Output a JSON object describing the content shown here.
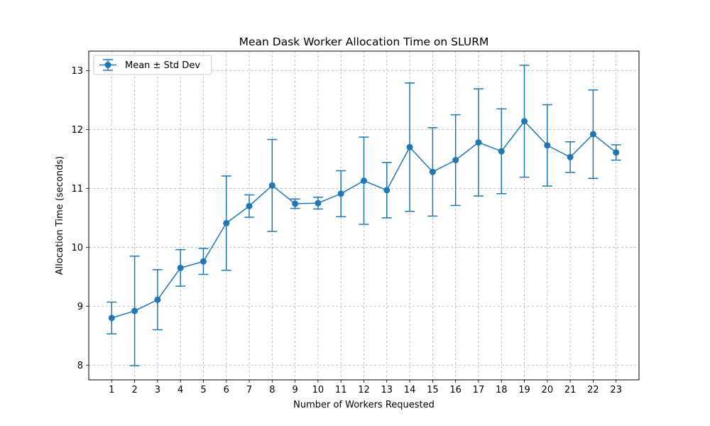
{
  "chart_data": {
    "type": "line",
    "title": "Mean Dask Worker Allocation Time on SLURM",
    "xlabel": "Number of Workers Requested",
    "ylabel": "Allocation Time (seconds)",
    "x": [
      1,
      2,
      3,
      4,
      5,
      6,
      7,
      8,
      9,
      10,
      11,
      12,
      13,
      14,
      15,
      16,
      17,
      18,
      19,
      20,
      21,
      22,
      23
    ],
    "xlim": [
      0,
      24
    ],
    "ylim": [
      7.75,
      13.33
    ],
    "yticks": [
      8,
      9,
      10,
      11,
      12,
      13
    ],
    "grid": true,
    "legend_position": "top-left",
    "series": [
      {
        "name": "Mean ± Std Dev",
        "color": "#1f77b4",
        "values": [
          8.8,
          8.92,
          9.11,
          9.65,
          9.76,
          10.41,
          10.7,
          11.05,
          10.74,
          10.75,
          10.91,
          11.13,
          10.97,
          11.7,
          11.28,
          11.48,
          11.78,
          11.63,
          12.14,
          11.73,
          11.53,
          11.92,
          11.61
        ],
        "error": [
          0.27,
          0.93,
          0.51,
          0.31,
          0.22,
          0.8,
          0.19,
          0.78,
          0.08,
          0.1,
          0.39,
          0.74,
          0.47,
          1.09,
          0.75,
          0.77,
          0.91,
          0.72,
          0.95,
          0.69,
          0.26,
          0.75,
          0.13
        ]
      }
    ]
  }
}
